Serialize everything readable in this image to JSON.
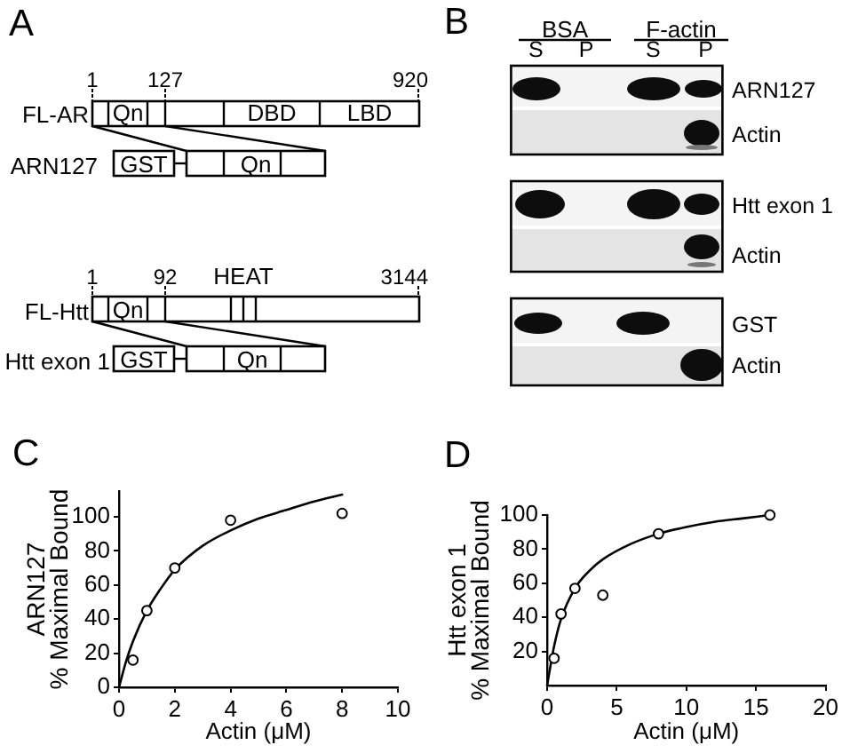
{
  "chart_data": [
    {
      "type": "other",
      "title": "A",
      "annotations": [
        "1",
        "127",
        "920",
        "FL-AR",
        "Qn",
        "DBD",
        "LBD",
        "ARN127",
        "GST",
        "Qn",
        "1",
        "92",
        "HEAT",
        "3144",
        "FL-Htt",
        "Qn",
        "Htt exon 1",
        "GST",
        "Qn"
      ]
    },
    {
      "type": "other",
      "title": "B",
      "annotations": [
        "BSA",
        "F-actin",
        "S",
        "P",
        "S",
        "P",
        "ARN127",
        "Actin",
        "Htt exon 1",
        "Actin",
        "GST",
        "Actin"
      ]
    },
    {
      "type": "scatter",
      "title": "C",
      "xlabel": "Actin (μM)",
      "ylabel": "ARN127\n% Maximal Bound",
      "xlim": [
        0,
        10
      ],
      "xticks": [
        0,
        2,
        4,
        6,
        8,
        10
      ],
      "ylim": [
        0,
        115
      ],
      "yticks": [
        0,
        20,
        40,
        60,
        80,
        100
      ],
      "marker": "circle",
      "series": [
        {
          "type": "scatter",
          "color": "#000000",
          "x": [
            0.5,
            1,
            2,
            4,
            8
          ],
          "values": [
            16,
            45,
            70,
            98,
            102
          ]
        },
        {
          "type": "line",
          "color": "#000000",
          "marker": "none",
          "x": [
            0,
            0.25,
            0.5,
            1,
            1.5,
            2,
            3,
            4,
            5,
            6,
            7,
            8
          ],
          "values": [
            0,
            15,
            27,
            45,
            58,
            69,
            83,
            92,
            99,
            104,
            109,
            113
          ]
        }
      ]
    },
    {
      "type": "scatter",
      "title": "D",
      "xlabel": "Actin (μM)",
      "ylabel": "Htt exon 1\n% Maximal Bound",
      "xlim": [
        0,
        20
      ],
      "xticks": [
        0,
        5,
        10,
        15,
        20
      ],
      "ylim": [
        0,
        100
      ],
      "yticks": [
        20,
        40,
        60,
        80,
        100
      ],
      "marker": "circle",
      "series": [
        {
          "type": "scatter",
          "color": "#000000",
          "x": [
            0.5,
            1,
            2,
            4,
            8,
            16
          ],
          "values": [
            16,
            42,
            57,
            53,
            89,
            100
          ]
        },
        {
          "type": "line",
          "color": "#000000",
          "marker": "none",
          "x": [
            0,
            0.25,
            0.5,
            1,
            2,
            3,
            4,
            6,
            8,
            10,
            12,
            14,
            16
          ],
          "values": [
            0,
            12,
            23,
            39,
            57,
            67,
            74,
            83,
            89,
            93,
            96,
            98,
            100
          ]
        }
      ]
    }
  ]
}
